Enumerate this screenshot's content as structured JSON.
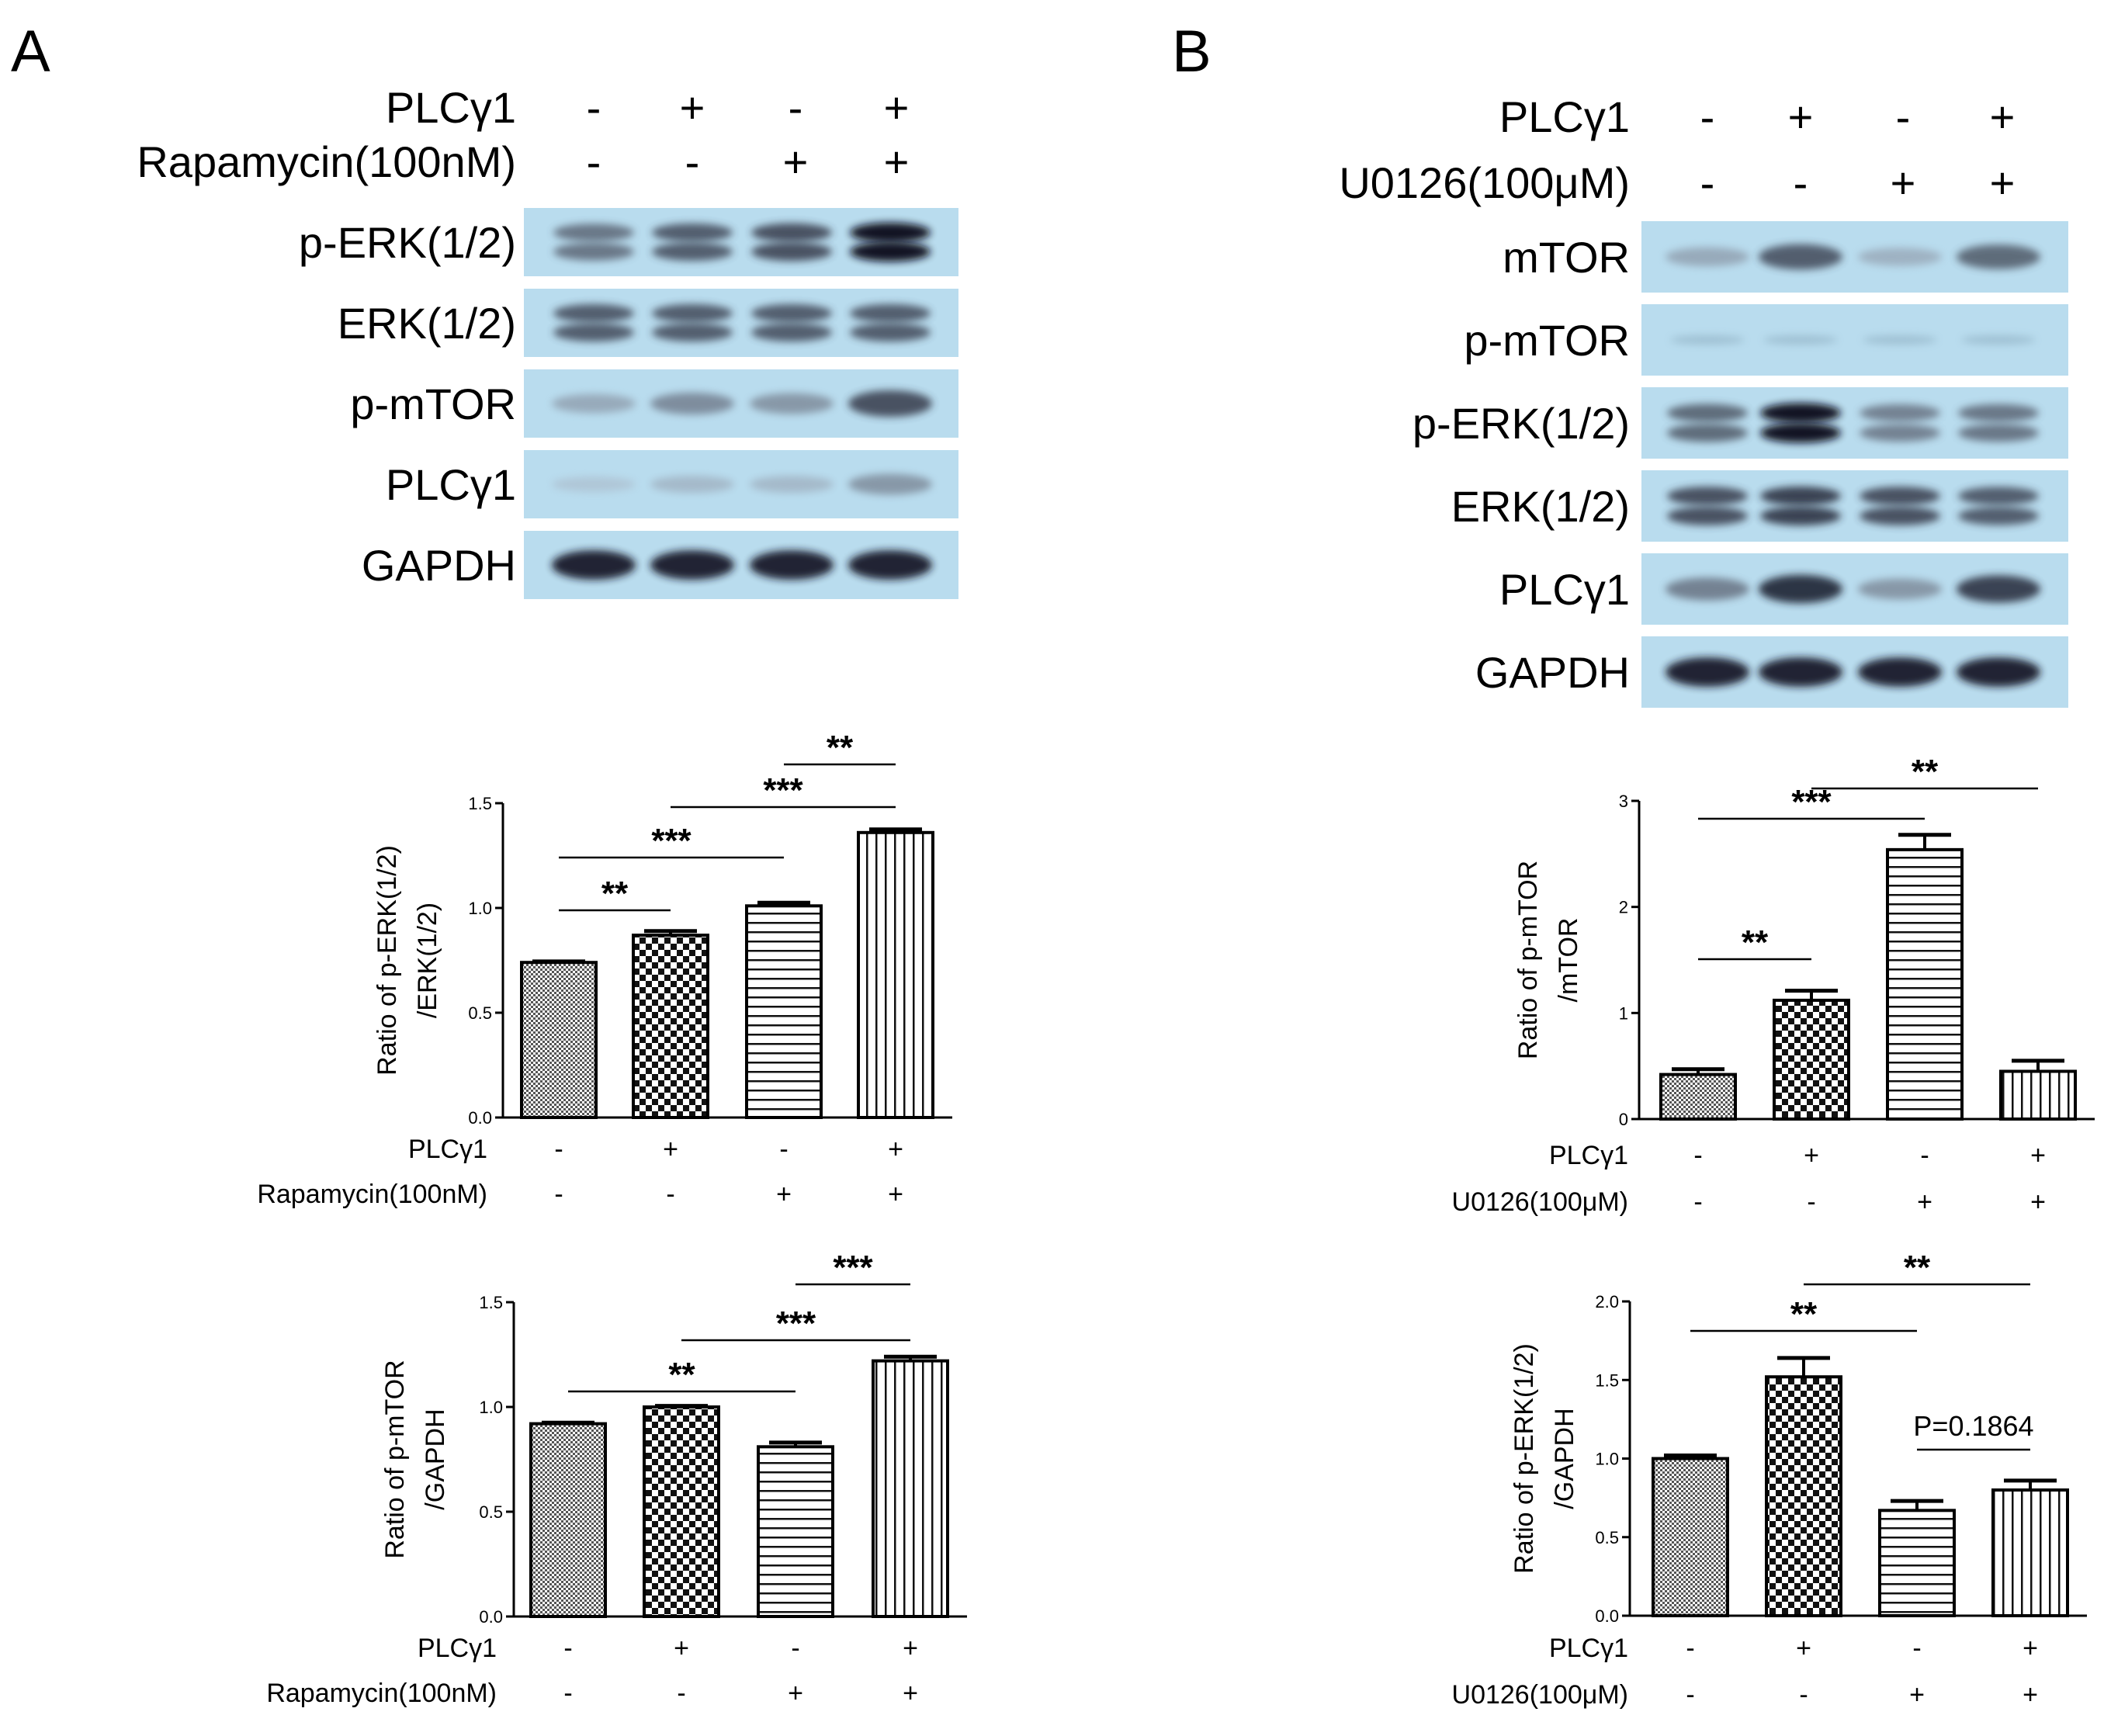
{
  "panel_a": {
    "letter": "A",
    "blot": {
      "header_rows": [
        {
          "label": "PLCγ1",
          "signs": [
            "-",
            "+",
            "-",
            "+"
          ]
        },
        {
          "label": "Rapamycin(100nM)",
          "signs": [
            "-",
            "-",
            "+",
            "+"
          ]
        }
      ],
      "strips": [
        {
          "name": "p-ERK(1/2)",
          "band": "double",
          "intensities": [
            0.6,
            0.7,
            0.75,
            0.95
          ]
        },
        {
          "name": "ERK(1/2)",
          "band": "double",
          "intensities": [
            0.7,
            0.7,
            0.7,
            0.7
          ]
        },
        {
          "name": "p-mTOR",
          "band": "single",
          "intensities": [
            0.35,
            0.5,
            0.45,
            0.75
          ]
        },
        {
          "name": "PLCγ1",
          "band": "single",
          "intensities": [
            0.15,
            0.25,
            0.25,
            0.45
          ]
        },
        {
          "name": "GAPDH",
          "band": "single",
          "intensities": [
            0.9,
            0.9,
            0.9,
            0.9
          ]
        }
      ]
    }
  },
  "panel_b": {
    "letter": "B",
    "blot": {
      "header_rows": [
        {
          "label": "PLCγ1",
          "signs": [
            "-",
            "+",
            "-",
            "+"
          ]
        },
        {
          "label": "U0126(100μM)",
          "signs": [
            "-",
            "-",
            "+",
            "+"
          ]
        }
      ],
      "strips": [
        {
          "name": "mTOR",
          "band": "single",
          "intensities": [
            0.35,
            0.7,
            0.3,
            0.65
          ]
        },
        {
          "name": "p-mTOR",
          "band": "faint",
          "intensities": [
            0.1,
            0.1,
            0.1,
            0.1
          ]
        },
        {
          "name": "p-ERK(1/2)",
          "band": "double",
          "intensities": [
            0.65,
            0.95,
            0.55,
            0.6
          ]
        },
        {
          "name": "ERK(1/2)",
          "band": "double",
          "intensities": [
            0.75,
            0.8,
            0.75,
            0.7
          ]
        },
        {
          "name": "PLCγ1",
          "band": "single",
          "intensities": [
            0.55,
            0.85,
            0.45,
            0.8
          ]
        },
        {
          "name": "GAPDH",
          "band": "single",
          "intensities": [
            0.9,
            0.9,
            0.9,
            0.9
          ]
        }
      ]
    }
  },
  "chart_data": [
    {
      "type": "bar",
      "panel": "A",
      "ylabel_lines": [
        "Ratio of p-ERK(1/2)",
        "/ERK(1/2)"
      ],
      "ylim": [
        0,
        1.5
      ],
      "yticks": [
        "0.0",
        "0.5",
        "1.0",
        "1.5"
      ],
      "values": [
        0.74,
        0.87,
        1.01,
        1.36
      ],
      "errors": [
        0.005,
        0.02,
        0.015,
        0.015
      ],
      "patterns": [
        "dense",
        "checker",
        "hlines",
        "vlines"
      ],
      "rows": [
        {
          "label": "PLCγ1",
          "signs": [
            "-",
            "+",
            "-",
            "+"
          ]
        },
        {
          "label": "Rapamycin(100nM)",
          "signs": [
            "-",
            "-",
            "+",
            "+"
          ]
        }
      ],
      "annotations": [
        {
          "text": "**",
          "from": 0,
          "to": 1
        },
        {
          "text": "***",
          "from": 0,
          "to": 2
        },
        {
          "text": "***",
          "from": 1,
          "to": 3
        },
        {
          "text": "**",
          "from": 2,
          "to": 3
        }
      ]
    },
    {
      "type": "bar",
      "panel": "A",
      "ylabel_lines": [
        "Ratio of p-mTOR",
        "/GAPDH"
      ],
      "ylim": [
        0,
        1.5
      ],
      "yticks": [
        "0.0",
        "0.5",
        "1.0",
        "1.5"
      ],
      "values": [
        0.92,
        1.0,
        0.81,
        1.22
      ],
      "errors": [
        0.005,
        0.005,
        0.02,
        0.02
      ],
      "patterns": [
        "dense",
        "checker",
        "hlines",
        "vlines"
      ],
      "rows": [
        {
          "label": "PLCγ1",
          "signs": [
            "-",
            "+",
            "-",
            "+"
          ]
        },
        {
          "label": "Rapamycin(100nM)",
          "signs": [
            "-",
            "-",
            "+",
            "+"
          ]
        }
      ],
      "annotations": [
        {
          "text": "**",
          "from": 0,
          "to": 2
        },
        {
          "text": "***",
          "from": 1,
          "to": 3
        },
        {
          "text": "***",
          "from": 2,
          "to": 3
        }
      ]
    },
    {
      "type": "bar",
      "panel": "B",
      "ylabel_lines": [
        "Ratio of p-mTOR",
        "/mTOR"
      ],
      "ylim": [
        0,
        3
      ],
      "yticks": [
        "0",
        "1",
        "2",
        "3"
      ],
      "values": [
        0.42,
        1.12,
        2.54,
        0.45
      ],
      "errors": [
        0.05,
        0.09,
        0.14,
        0.1
      ],
      "patterns": [
        "dense",
        "checker",
        "hlines",
        "vlines"
      ],
      "rows": [
        {
          "label": "PLCγ1",
          "signs": [
            "-",
            "+",
            "-",
            "+"
          ]
        },
        {
          "label": "U0126(100μM)",
          "signs": [
            "-",
            "-",
            "+",
            "+"
          ]
        }
      ],
      "annotations": [
        {
          "text": "**",
          "from": 0,
          "to": 1
        },
        {
          "text": "***",
          "from": 0,
          "to": 2
        },
        {
          "text": "**",
          "from": 1,
          "to": 3
        }
      ]
    },
    {
      "type": "bar",
      "panel": "B",
      "ylabel_lines": [
        "Ratio of p-ERK(1/2)",
        "/GAPDH"
      ],
      "ylim": [
        0,
        2.0
      ],
      "yticks": [
        "0.0",
        "0.5",
        "1.0",
        "1.5",
        "2.0"
      ],
      "values": [
        1.0,
        1.52,
        0.67,
        0.8
      ],
      "errors": [
        0.02,
        0.12,
        0.06,
        0.06
      ],
      "patterns": [
        "dense",
        "checker",
        "hlines",
        "vlines"
      ],
      "rows": [
        {
          "label": "PLCγ1",
          "signs": [
            "-",
            "+",
            "-",
            "+"
          ]
        },
        {
          "label": "U0126(100μM)",
          "signs": [
            "-",
            "-",
            "+",
            "+"
          ]
        }
      ],
      "annotations": [
        {
          "text": "**",
          "from": 0,
          "to": 2
        },
        {
          "text": "**",
          "from": 1,
          "to": 3
        },
        {
          "text": "P=0.1864",
          "from": 2,
          "to": 3
        }
      ]
    }
  ]
}
